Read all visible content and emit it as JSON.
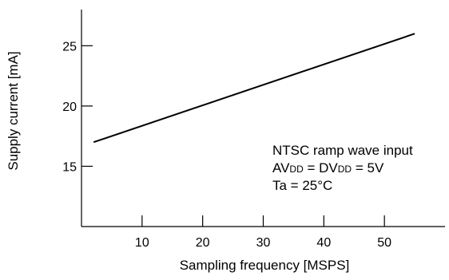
{
  "chart_data": {
    "type": "line",
    "title": "",
    "xlabel": "Sampling frequency [MSPS]",
    "ylabel": "Supply current [mA]",
    "xlim": [
      0,
      60
    ],
    "ylim": [
      10,
      28
    ],
    "xticks": [
      10,
      20,
      30,
      40,
      50
    ],
    "yticks": [
      15,
      20,
      25
    ],
    "grid": false,
    "series": [
      {
        "x": [
          2,
          55
        ],
        "y": [
          17.0,
          26.0
        ]
      }
    ],
    "annotation": {
      "line1": "NTSC ramp wave input",
      "line2": {
        "a": "AV",
        "a_sub": "DD",
        "eq": " = DV",
        "b_sub": "DD",
        "rest": " = 5V"
      },
      "line3": "Ta = 25°C"
    },
    "colors": {
      "line": "#000000",
      "axis": "#000000"
    }
  }
}
